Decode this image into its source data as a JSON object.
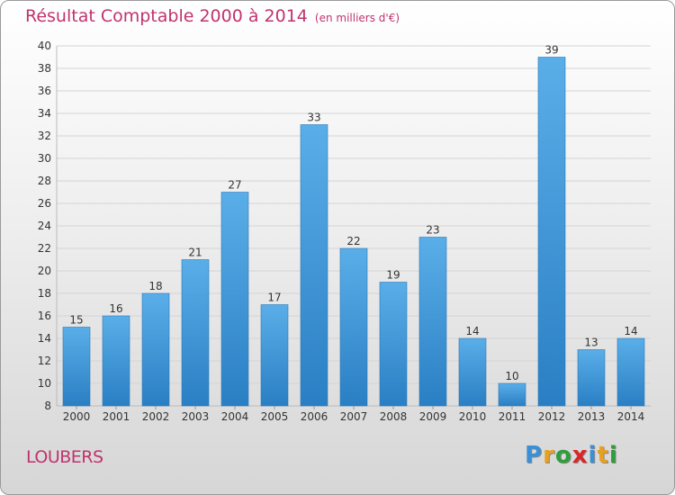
{
  "title": "Résultat Comptable 2000 à 2014",
  "subtitle": "(en milliers d'€)",
  "place": "LOUBERS",
  "logo": {
    "text": "Proxiti",
    "letter_colors": [
      "#3a8fd6",
      "#e8a020",
      "#2e9e3a",
      "#d8262a",
      "#3a8fd6",
      "#e8a020",
      "#2e9e3a"
    ]
  },
  "colors": {
    "bar_top": "#5aaee8",
    "bar_bottom": "#2a7fc4",
    "grid": "#d4d4d4",
    "title": "#c0336e",
    "text": "#333333"
  },
  "chart_data": {
    "type": "bar",
    "title": "Résultat Comptable 2000 à 2014",
    "subtitle": "(en milliers d'€)",
    "categories": [
      "2000",
      "2001",
      "2002",
      "2003",
      "2004",
      "2005",
      "2006",
      "2007",
      "2008",
      "2009",
      "2010",
      "2011",
      "2012",
      "2013",
      "2014"
    ],
    "values": [
      15,
      16,
      18,
      21,
      27,
      17,
      33,
      22,
      19,
      23,
      14,
      10,
      39,
      13,
      14
    ],
    "ylim": [
      8,
      40
    ],
    "yticks": [
      8,
      10,
      12,
      14,
      16,
      18,
      20,
      22,
      24,
      26,
      28,
      30,
      32,
      34,
      36,
      38,
      40
    ],
    "grid": true,
    "legend": "none"
  }
}
